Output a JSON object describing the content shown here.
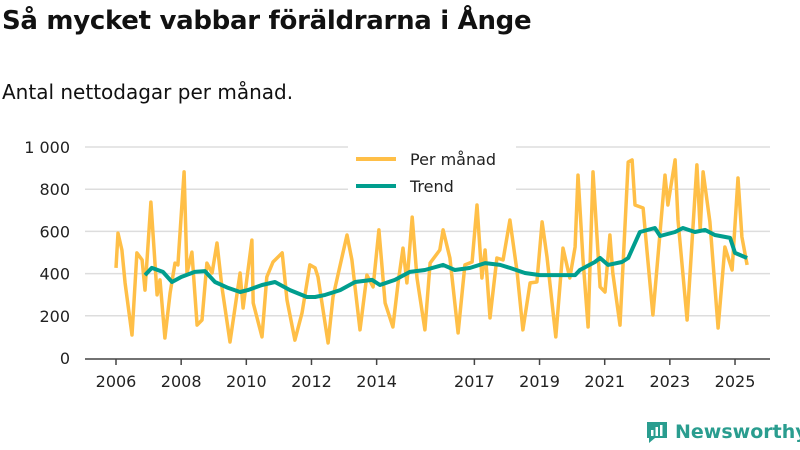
{
  "title": "Så mycket vabbar föräldrarna i Ånge",
  "subtitle": "Antal nettodagar per månad.",
  "logo": "Newsworthy",
  "colors": {
    "per_month": "#ffbf47",
    "trend": "#009e8e",
    "grid": "#dddddd",
    "axis": "#444444"
  },
  "chart_data": {
    "type": "line",
    "title": "Så mycket vabbar föräldrarna i Ånge",
    "xlabel": "",
    "ylabel": "",
    "ylim": [
      0,
      1000
    ],
    "xlim": [
      2005.6,
      2025.9
    ],
    "yticks": [
      0,
      200,
      400,
      600,
      800,
      1000
    ],
    "ytick_labels": [
      "0",
      "200",
      "400",
      "600",
      "800",
      "1 000"
    ],
    "xticks": [
      2006,
      2008,
      2010,
      2012,
      2014,
      2017,
      2019,
      2021,
      2023,
      2025
    ],
    "xtick_labels": [
      "2006",
      "2008",
      "2010",
      "2012",
      "2014",
      "2017",
      "2019",
      "2021",
      "2023",
      "2025"
    ],
    "grid": true,
    "legend": "top-center",
    "series": [
      {
        "name": "Per månad",
        "points": [
          [
            2006.0,
            427
          ],
          [
            2006.06,
            592
          ],
          [
            2006.18,
            512
          ],
          [
            2006.28,
            355
          ],
          [
            2006.49,
            109
          ],
          [
            2006.64,
            498
          ],
          [
            2006.8,
            465
          ],
          [
            2006.89,
            322
          ],
          [
            2007.07,
            739
          ],
          [
            2007.26,
            299
          ],
          [
            2007.35,
            370
          ],
          [
            2007.5,
            95
          ],
          [
            2007.66,
            308
          ],
          [
            2007.81,
            450
          ],
          [
            2007.9,
            441
          ],
          [
            2008.09,
            882
          ],
          [
            2008.18,
            403
          ],
          [
            2008.33,
            502
          ],
          [
            2008.49,
            156
          ],
          [
            2008.64,
            180
          ],
          [
            2008.79,
            450
          ],
          [
            2008.95,
            403
          ],
          [
            2009.1,
            545
          ],
          [
            2009.25,
            337
          ],
          [
            2009.5,
            76
          ],
          [
            2009.81,
            403
          ],
          [
            2009.9,
            237
          ],
          [
            2010.17,
            559
          ],
          [
            2010.21,
            261
          ],
          [
            2010.48,
            100
          ],
          [
            2010.63,
            384
          ],
          [
            2010.82,
            455
          ],
          [
            2011.1,
            498
          ],
          [
            2011.25,
            275
          ],
          [
            2011.49,
            85
          ],
          [
            2011.71,
            213
          ],
          [
            2011.95,
            441
          ],
          [
            2012.11,
            427
          ],
          [
            2012.2,
            384
          ],
          [
            2012.51,
            71
          ],
          [
            2012.66,
            289
          ],
          [
            2012.81,
            393
          ],
          [
            2013.09,
            583
          ],
          [
            2013.24,
            465
          ],
          [
            2013.49,
            133
          ],
          [
            2013.7,
            393
          ],
          [
            2013.89,
            337
          ],
          [
            2014.07,
            607
          ],
          [
            2014.26,
            261
          ],
          [
            2014.5,
            147
          ],
          [
            2014.66,
            356
          ],
          [
            2014.81,
            521
          ],
          [
            2014.93,
            356
          ],
          [
            2015.09,
            668
          ],
          [
            2015.24,
            379
          ],
          [
            2015.48,
            133
          ],
          [
            2015.64,
            450
          ],
          [
            2015.94,
            512
          ],
          [
            2016.04,
            607
          ],
          [
            2016.25,
            474
          ],
          [
            2016.5,
            119
          ],
          [
            2016.71,
            441
          ],
          [
            2016.93,
            455
          ],
          [
            2017.08,
            725
          ],
          [
            2017.23,
            379
          ],
          [
            2017.33,
            512
          ],
          [
            2017.48,
            190
          ],
          [
            2017.69,
            474
          ],
          [
            2017.88,
            465
          ],
          [
            2018.09,
            654
          ],
          [
            2018.31,
            408
          ],
          [
            2018.49,
            133
          ],
          [
            2018.71,
            356
          ],
          [
            2018.92,
            360
          ],
          [
            2019.08,
            645
          ],
          [
            2019.23,
            479
          ],
          [
            2019.5,
            100
          ],
          [
            2019.72,
            521
          ],
          [
            2019.93,
            379
          ],
          [
            2020.09,
            526
          ],
          [
            2020.18,
            867
          ],
          [
            2020.33,
            474
          ],
          [
            2020.49,
            147
          ],
          [
            2020.64,
            882
          ],
          [
            2020.86,
            337
          ],
          [
            2021.01,
            313
          ],
          [
            2021.16,
            583
          ],
          [
            2021.25,
            403
          ],
          [
            2021.47,
            156
          ],
          [
            2021.72,
            929
          ],
          [
            2021.84,
            939
          ],
          [
            2021.93,
            725
          ],
          [
            2022.18,
            711
          ],
          [
            2022.3,
            502
          ],
          [
            2022.48,
            204
          ],
          [
            2022.85,
            867
          ],
          [
            2022.94,
            725
          ],
          [
            2023.16,
            939
          ],
          [
            2023.25,
            654
          ],
          [
            2023.53,
            180
          ],
          [
            2023.83,
            915
          ],
          [
            2023.93,
            607
          ],
          [
            2024.02,
            882
          ],
          [
            2024.23,
            645
          ],
          [
            2024.48,
            142
          ],
          [
            2024.69,
            526
          ],
          [
            2024.91,
            417
          ],
          [
            2025.09,
            853
          ],
          [
            2025.21,
            574
          ],
          [
            2025.37,
            441
          ]
        ]
      },
      {
        "name": "Trend",
        "points": [
          [
            2006.89,
            393
          ],
          [
            2007.1,
            427
          ],
          [
            2007.44,
            408
          ],
          [
            2007.72,
            360
          ],
          [
            2008.0,
            384
          ],
          [
            2008.42,
            408
          ],
          [
            2008.73,
            412
          ],
          [
            2009.04,
            360
          ],
          [
            2009.44,
            332
          ],
          [
            2009.81,
            313
          ],
          [
            2010.05,
            322
          ],
          [
            2010.48,
            346
          ],
          [
            2010.88,
            360
          ],
          [
            2011.34,
            322
          ],
          [
            2011.86,
            289
          ],
          [
            2012.11,
            289
          ],
          [
            2012.42,
            299
          ],
          [
            2012.88,
            322
          ],
          [
            2013.34,
            360
          ],
          [
            2013.86,
            370
          ],
          [
            2014.1,
            346
          ],
          [
            2014.56,
            370
          ],
          [
            2015.02,
            408
          ],
          [
            2015.48,
            417
          ],
          [
            2016.04,
            441
          ],
          [
            2016.4,
            417
          ],
          [
            2016.87,
            427
          ],
          [
            2017.33,
            450
          ],
          [
            2017.79,
            441
          ],
          [
            2018.09,
            427
          ],
          [
            2018.55,
            403
          ],
          [
            2019.01,
            393
          ],
          [
            2019.63,
            393
          ],
          [
            2020.09,
            393
          ],
          [
            2020.24,
            417
          ],
          [
            2020.7,
            455
          ],
          [
            2020.86,
            474
          ],
          [
            2021.1,
            441
          ],
          [
            2021.53,
            455
          ],
          [
            2021.72,
            474
          ],
          [
            2022.08,
            597
          ],
          [
            2022.54,
            616
          ],
          [
            2022.7,
            578
          ],
          [
            2023.16,
            597
          ],
          [
            2023.4,
            616
          ],
          [
            2023.77,
            597
          ],
          [
            2024.08,
            607
          ],
          [
            2024.38,
            583
          ],
          [
            2024.85,
            569
          ],
          [
            2025.0,
            498
          ],
          [
            2025.37,
            474
          ]
        ]
      }
    ]
  }
}
